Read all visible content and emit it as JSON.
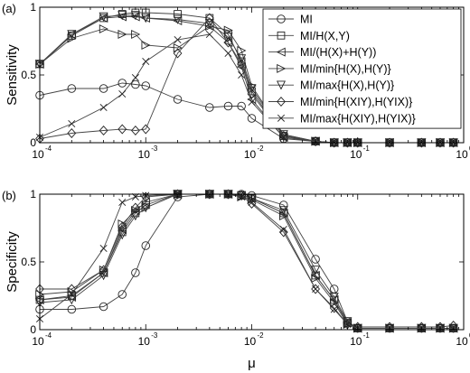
{
  "chart_data": [
    {
      "type": "line",
      "panel_label": "(a)",
      "ylabel": "Sensitivity",
      "xlabel": "",
      "xscale": "log",
      "xlim": [
        0.0001,
        1
      ],
      "ylim": [
        0,
        1
      ],
      "x_ticks": [
        "10",
        "10",
        "10",
        "10",
        "10"
      ],
      "x_tick_exponents": [
        "-4",
        "-3",
        "-2",
        "-1",
        "0"
      ],
      "y_ticks": [
        "0",
        "0.5",
        "1"
      ],
      "legend": {
        "position": "top-right"
      },
      "x": [
        0.0001,
        0.0002,
        0.0004,
        0.0006,
        0.0008,
        0.001,
        0.002,
        0.004,
        0.006,
        0.008,
        0.01,
        0.02,
        0.04,
        0.06,
        0.08,
        0.1,
        0.2,
        0.4,
        0.6,
        0.8
      ],
      "series": [
        {
          "name": "MI",
          "marker": "circle",
          "values": [
            0.35,
            0.4,
            0.4,
            0.44,
            0.43,
            0.42,
            0.32,
            0.26,
            0.27,
            0.27,
            0.18,
            0.03,
            0.01,
            0,
            0,
            0,
            0,
            0,
            0,
            0
          ]
        },
        {
          "name": "MI/H(X,Y)",
          "marker": "square",
          "values": [
            0.58,
            0.79,
            0.92,
            0.95,
            0.96,
            0.96,
            0.95,
            0.92,
            0.8,
            0.6,
            0.38,
            0.05,
            0.01,
            0,
            0,
            0,
            0,
            0,
            0,
            0
          ]
        },
        {
          "name": "MI/(H(X)+H(Y))",
          "marker": "triangle-left",
          "values": [
            0.58,
            0.8,
            0.92,
            0.93,
            0.93,
            0.92,
            0.9,
            0.86,
            0.74,
            0.56,
            0.32,
            0.04,
            0.01,
            0,
            0,
            0,
            0,
            0,
            0,
            0
          ]
        },
        {
          "name": "MI/min{H(X),H(Y)}",
          "marker": "triangle-right",
          "values": [
            0.58,
            0.77,
            0.84,
            0.8,
            0.8,
            0.72,
            0.7,
            0.86,
            0.83,
            0.68,
            0.42,
            0.06,
            0.01,
            0,
            0,
            0,
            0,
            0,
            0,
            0
          ]
        },
        {
          "name": "MI/max{H(X),H(Y)}",
          "marker": "triangle-down",
          "values": [
            0.58,
            0.8,
            0.93,
            0.94,
            0.94,
            0.92,
            0.91,
            0.88,
            0.78,
            0.62,
            0.4,
            0.06,
            0.01,
            0,
            0,
            0,
            0,
            0,
            0,
            0
          ]
        },
        {
          "name": "MI/min{H(XIY),H(YIX)}",
          "marker": "diamond",
          "values": [
            0.03,
            0.07,
            0.09,
            0.1,
            0.09,
            0.1,
            0.66,
            0.92,
            0.74,
            0.58,
            0.36,
            0.05,
            0.01,
            0,
            0,
            0,
            0,
            0,
            0,
            0
          ]
        },
        {
          "name": "MI/max{H(XIY),H(YIX)}",
          "marker": "x",
          "values": [
            0.04,
            0.14,
            0.26,
            0.36,
            0.48,
            0.6,
            0.76,
            0.8,
            0.66,
            0.5,
            0.3,
            0.04,
            0.01,
            0,
            0,
            0,
            0,
            0,
            0,
            0
          ]
        }
      ]
    },
    {
      "type": "line",
      "panel_label": "(b)",
      "ylabel": "Specificity",
      "xlabel": "μ",
      "xscale": "log",
      "xlim": [
        0.0001,
        1
      ],
      "ylim": [
        0,
        1
      ],
      "x_ticks": [
        "10",
        "10",
        "10",
        "10",
        "10"
      ],
      "x_tick_exponents": [
        "-4",
        "-3",
        "-2",
        "-1",
        "0"
      ],
      "y_ticks": [
        "0",
        "0.5",
        "1"
      ],
      "x": [
        0.0001,
        0.0002,
        0.0004,
        0.0006,
        0.0008,
        0.001,
        0.002,
        0.004,
        0.006,
        0.008,
        0.01,
        0.02,
        0.04,
        0.06,
        0.08,
        0.1,
        0.2,
        0.4,
        0.6,
        0.8
      ],
      "series": [
        {
          "name": "MI",
          "marker": "circle",
          "values": [
            0.15,
            0.15,
            0.17,
            0.26,
            0.42,
            0.62,
            0.98,
            1,
            1,
            1,
            0.99,
            0.92,
            0.52,
            0.3,
            0.06,
            0.01,
            0.01,
            0.01,
            0.01,
            0.01
          ]
        },
        {
          "name": "MI/H(X,Y)",
          "marker": "square",
          "values": [
            0.22,
            0.25,
            0.42,
            0.72,
            0.86,
            0.92,
            1,
            1,
            1,
            0.99,
            0.97,
            0.86,
            0.4,
            0.22,
            0.05,
            0.01,
            0.01,
            0.01,
            0.01,
            0.01
          ]
        },
        {
          "name": "MI/(H(X)+H(Y))",
          "marker": "triangle-left",
          "values": [
            0.22,
            0.24,
            0.42,
            0.74,
            0.88,
            0.94,
            1,
            1,
            1,
            0.99,
            0.97,
            0.86,
            0.4,
            0.22,
            0.05,
            0.01,
            0.01,
            0.01,
            0.01,
            0.01
          ]
        },
        {
          "name": "MI/min{H(X),H(Y)}",
          "marker": "triangle-right",
          "values": [
            0.26,
            0.28,
            0.44,
            0.78,
            0.88,
            0.9,
            1,
            1,
            1,
            0.98,
            0.96,
            0.84,
            0.38,
            0.2,
            0.04,
            0.01,
            0.01,
            0.01,
            0.01,
            0.01
          ]
        },
        {
          "name": "MI/max{H(X),H(Y)}",
          "marker": "triangle-down",
          "values": [
            0.2,
            0.22,
            0.4,
            0.7,
            0.84,
            0.9,
            1,
            1,
            1,
            0.99,
            0.97,
            0.88,
            0.44,
            0.24,
            0.06,
            0.01,
            0.01,
            0.01,
            0.01,
            0.01
          ]
        },
        {
          "name": "MI/min{H(XIY),H(YIX)}",
          "marker": "diamond",
          "values": [
            0.3,
            0.3,
            0.44,
            0.76,
            0.9,
            0.98,
            1,
            1,
            1,
            0.99,
            0.93,
            0.72,
            0.3,
            0.16,
            0.04,
            0.02,
            0.02,
            0.02,
            0.02,
            0.03
          ]
        },
        {
          "name": "MI/max{H(XIY),H(YIX)}",
          "marker": "x",
          "values": [
            0.08,
            0.26,
            0.6,
            0.94,
            0.98,
            0.99,
            1,
            1,
            1,
            0.98,
            0.94,
            0.74,
            0.3,
            0.15,
            0.04,
            0.01,
            0.01,
            0.01,
            0.01,
            0.01
          ]
        }
      ]
    }
  ]
}
